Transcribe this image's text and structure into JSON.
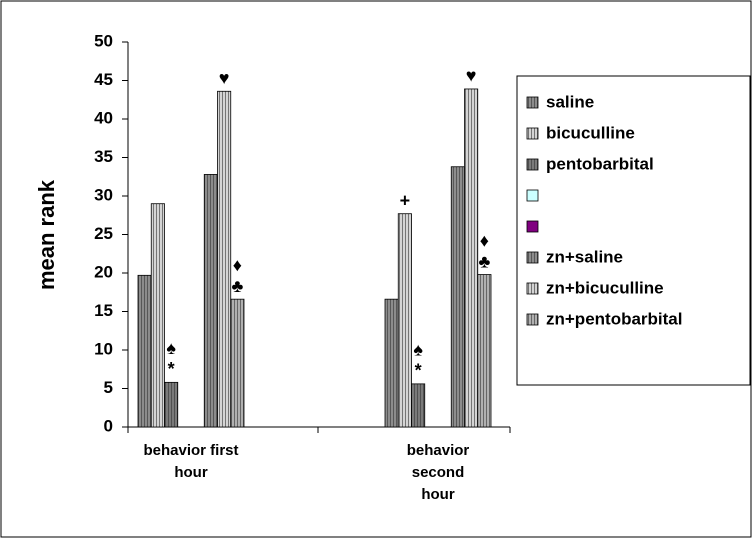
{
  "chart_data": {
    "type": "bar",
    "y_label": "mean rank",
    "categories": [
      "behavior first hour",
      "behavior second hour"
    ],
    "series": [
      {
        "name": "saline",
        "color": "#8c8c8c",
        "values": [
          19.7,
          16.6
        ]
      },
      {
        "name": "bicuculline",
        "color": "#d4d4d4",
        "values": [
          29,
          27.7
        ],
        "annotations": [
          null,
          [
            "+"
          ]
        ]
      },
      {
        "name": "pentobarbital",
        "color": "#7a7a7a",
        "values": [
          5.8,
          5.6
        ],
        "annotations": [
          [
            "♠",
            "*"
          ],
          [
            "♠",
            "*"
          ]
        ]
      },
      {
        "color": "#ccffff",
        "values": [
          null,
          null
        ]
      },
      {
        "color": "#800080",
        "values": [
          null,
          null
        ]
      },
      {
        "name": "zn+saline",
        "color": "#8c8c8c",
        "values": [
          32.8,
          33.8
        ]
      },
      {
        "name": "zn+bicuculline",
        "color": "#d4d4d4",
        "values": [
          43.6,
          43.9
        ],
        "annotations": [
          [
            "♥"
          ],
          [
            "♥"
          ]
        ]
      },
      {
        "name": "zn+pentobarbital",
        "color": "#b0b0b0",
        "values": [
          16.6,
          19.8
        ],
        "annotations": [
          [
            "♦",
            "♣"
          ],
          [
            "♦",
            "♣"
          ]
        ]
      }
    ],
    "ylim": [
      0,
      50
    ],
    "yticks": [
      0,
      5,
      10,
      15,
      20,
      25,
      30,
      35,
      40,
      45,
      50
    ],
    "grid": false
  }
}
